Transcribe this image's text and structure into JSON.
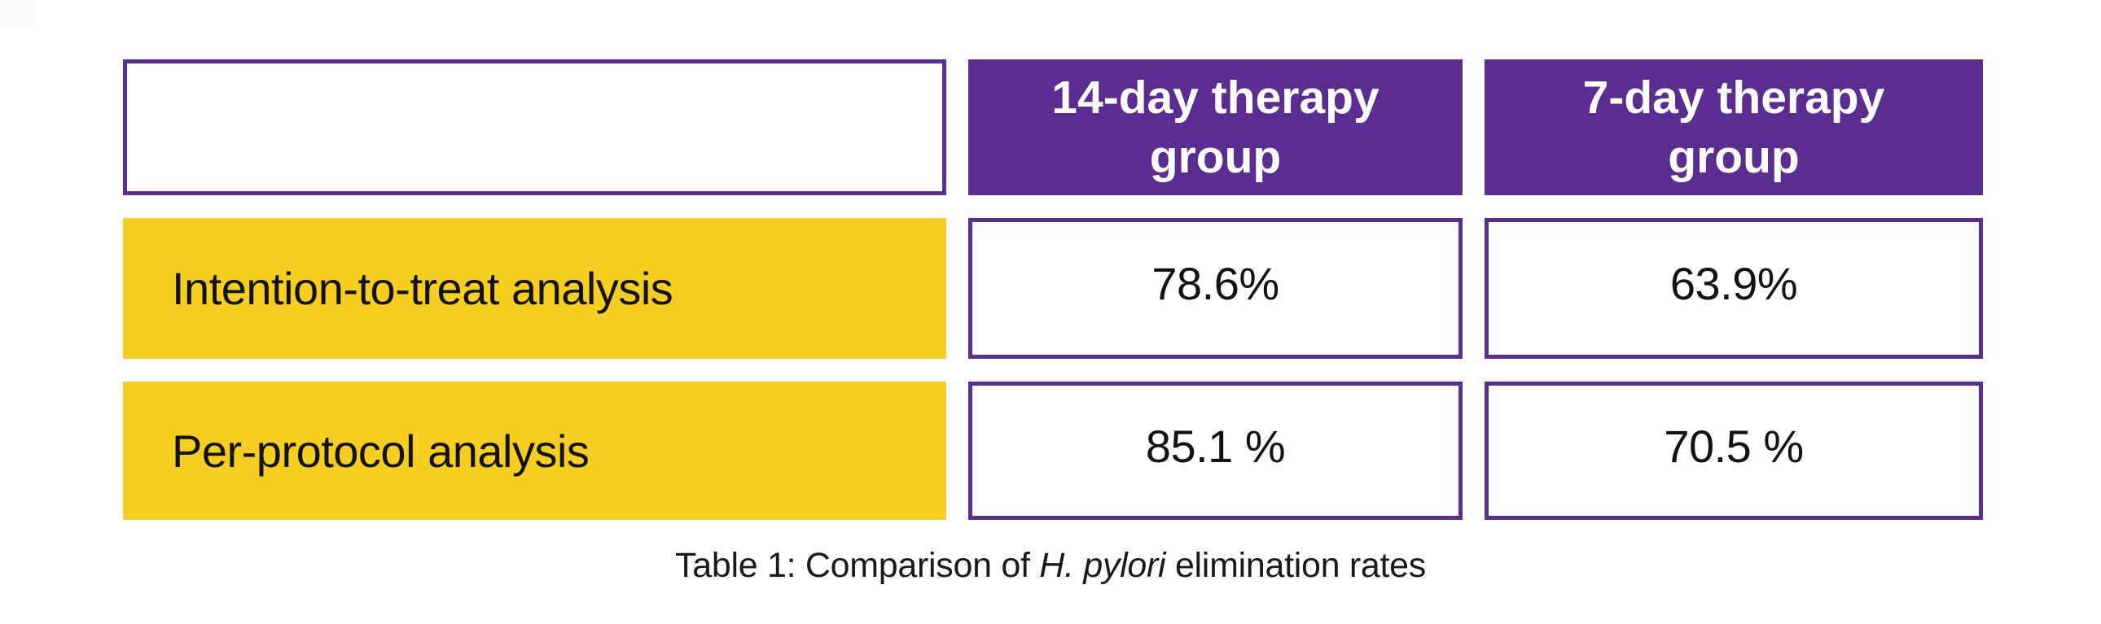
{
  "colors": {
    "purple": "#5B2D90",
    "yellow": "#F5CE1F",
    "cell_border": "#5B2D90",
    "header_text": "#FFFFFF",
    "body_text": "#121212",
    "background": "#FFFFFF"
  },
  "table": {
    "header": {
      "col_label": "",
      "col_14day": "14-day therapy group",
      "col_7day": "7-day therapy group"
    },
    "rows": [
      {
        "label": "Intention-to-treat analysis",
        "value_14day": "78.6%",
        "value_7day": "63.9%"
      },
      {
        "label": "Per-protocol analysis",
        "value_14day": "85.1 %",
        "value_7day": "70.5 %"
      }
    ]
  },
  "caption": {
    "prefix": "Table 1: Comparison of ",
    "italic_term": "H. pylori",
    "suffix": " elimination rates"
  },
  "chart_data": {
    "type": "table",
    "title": "Table 1: Comparison of H. pylori elimination rates",
    "columns": [
      "",
      "14-day therapy group",
      "7-day therapy group"
    ],
    "categories": [
      "Intention-to-treat analysis",
      "Per-protocol analysis"
    ],
    "series": [
      {
        "name": "14-day therapy group",
        "values": [
          78.6,
          85.1
        ]
      },
      {
        "name": "7-day therapy group",
        "values": [
          63.9,
          70.5
        ]
      }
    ],
    "unit": "%"
  }
}
